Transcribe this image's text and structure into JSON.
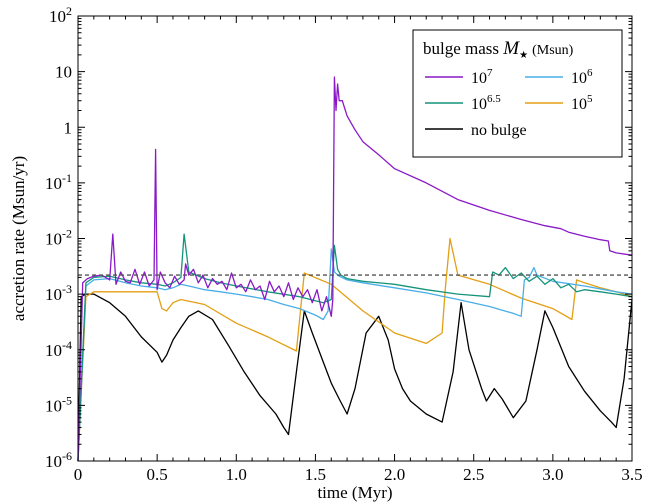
{
  "chart_data": {
    "type": "line",
    "xlabel": "time (Myr)",
    "ylabel": "accretion rate (Msun/yr)",
    "xlim": [
      0,
      3.5
    ],
    "ylim": [
      1e-06,
      100
    ],
    "yscale": "log",
    "x_ticks": [
      "0",
      "0.5",
      "1.0",
      "1.5",
      "2.0",
      "2.5",
      "3.0",
      "3.5"
    ],
    "y_ticks": [
      {
        "base": "10",
        "exp": "-6"
      },
      {
        "base": "10",
        "exp": "-5"
      },
      {
        "base": "10",
        "exp": "-4"
      },
      {
        "base": "10",
        "exp": "-3"
      },
      {
        "base": "10",
        "exp": "-2"
      },
      {
        "base": "10",
        "exp": "-1"
      },
      {
        "base": "1",
        "exp": ""
      },
      {
        "base": "10",
        "exp": ""
      },
      {
        "base": "10",
        "exp": "2"
      }
    ],
    "legend": {
      "title_prefix": "bulge mass ",
      "title_symbol": "M",
      "title_star": "★",
      "title_unit": "(Msun)",
      "placement": "top-right",
      "entries": [
        {
          "base": "10",
          "exp": "7",
          "color": "#8a19c7"
        },
        {
          "base": "10",
          "exp": "6",
          "color": "#49aee8"
        },
        {
          "base": "10",
          "exp": "6.5",
          "color": "#14947a"
        },
        {
          "base": "10",
          "exp": "5",
          "color": "#e49f14"
        },
        {
          "base": "no bulge",
          "exp": "",
          "color": "#000000"
        }
      ]
    },
    "reference_line": {
      "y": 0.0022,
      "style": "dashed",
      "color": "#555555"
    },
    "series": [
      {
        "color": "#000000",
        "x": [
          0,
          0.02,
          0.05,
          0.1,
          0.2,
          0.3,
          0.4,
          0.5,
          0.53,
          0.56,
          0.6,
          0.65,
          0.7,
          0.76,
          0.85,
          0.95,
          1.05,
          1.15,
          1.25,
          1.3,
          1.33,
          1.38,
          1.43,
          1.48,
          1.55,
          1.6,
          1.65,
          1.7,
          1.75,
          1.82,
          1.9,
          1.96,
          2.0,
          2.05,
          2.1,
          2.2,
          2.3,
          2.37,
          2.42,
          2.47,
          2.55,
          2.58,
          2.63,
          2.68,
          2.75,
          2.83,
          2.9,
          2.95,
          3.0,
          3.1,
          3.2,
          3.3,
          3.37,
          3.4,
          3.45,
          3.5
        ],
        "y": [
          1e-06,
          0.0009,
          0.001,
          0.001,
          0.0007,
          0.0004,
          0.00017,
          9e-05,
          6e-05,
          8e-05,
          0.00015,
          0.00025,
          0.0004,
          0.0005,
          0.00035,
          0.00012,
          4e-05,
          1.5e-05,
          7e-06,
          4e-06,
          3e-06,
          4e-05,
          0.0005,
          0.0002,
          6e-05,
          2.5e-05,
          1.3e-05,
          7e-06,
          2e-05,
          0.0002,
          0.0004,
          0.00015,
          4.5e-05,
          2e-05,
          1.2e-05,
          7e-06,
          5e-06,
          4e-05,
          0.0007,
          0.0001,
          2e-05,
          1.2e-05,
          2e-05,
          1.3e-05,
          6e-06,
          1.2e-05,
          0.0001,
          0.0005,
          0.00025,
          5e-05,
          1.8e-05,
          8e-06,
          5e-06,
          4e-06,
          3e-05,
          0.0008
        ]
      },
      {
        "color": "#e49f14",
        "x": [
          0,
          0.05,
          0.1,
          0.2,
          0.35,
          0.5,
          0.53,
          0.56,
          0.6,
          0.65,
          0.8,
          1.0,
          1.2,
          1.38,
          1.43,
          1.6,
          1.8,
          2.0,
          2.2,
          2.3,
          2.32,
          2.35,
          2.4,
          2.6,
          2.8,
          3.0,
          3.12,
          3.15,
          3.2,
          3.3,
          3.4,
          3.5
        ],
        "y": [
          1e-06,
          0.0009,
          0.0011,
          0.0011,
          0.0011,
          0.0011,
          0.00055,
          0.0005,
          0.0007,
          0.0008,
          0.00065,
          0.0003,
          0.00017,
          9.5e-05,
          0.0024,
          0.0015,
          0.0005,
          0.0002,
          0.00013,
          0.0002,
          0.0012,
          0.01,
          0.0022,
          0.0015,
          0.00085,
          0.00055,
          0.00035,
          0.0018,
          0.0016,
          0.0013,
          0.0011,
          0.0009
        ]
      },
      {
        "color": "#49aee8",
        "x": [
          0,
          0.05,
          0.1,
          0.2,
          0.3,
          0.4,
          0.5,
          0.55,
          0.6,
          0.65,
          0.7,
          0.8,
          0.9,
          1.0,
          1.1,
          1.2,
          1.3,
          1.4,
          1.5,
          1.55,
          1.58,
          1.6,
          1.62,
          1.65,
          1.7,
          1.8,
          2.0,
          2.2,
          2.4,
          2.6,
          2.75,
          2.8,
          2.82,
          2.85,
          2.88,
          2.9,
          3.0,
          3.2,
          3.4,
          3.5
        ],
        "y": [
          1e-06,
          0.0014,
          0.0018,
          0.0019,
          0.0016,
          0.0014,
          0.0013,
          0.0012,
          0.0013,
          0.0015,
          0.0014,
          0.0012,
          0.0011,
          0.001,
          0.0009,
          0.0008,
          0.00065,
          0.00055,
          0.00042,
          0.00035,
          0.0005,
          0.0065,
          0.0025,
          0.0021,
          0.0018,
          0.0016,
          0.0013,
          0.00105,
          0.0008,
          0.0006,
          0.00045,
          0.0004,
          0.0018,
          0.002,
          0.003,
          0.0022,
          0.0017,
          0.0014,
          0.0011,
          0.001
        ]
      },
      {
        "color": "#14947a",
        "x": [
          0,
          0.05,
          0.1,
          0.2,
          0.3,
          0.4,
          0.5,
          0.55,
          0.6,
          0.65,
          0.67,
          0.7,
          0.8,
          0.9,
          1.0,
          1.2,
          1.4,
          1.55,
          1.6,
          1.62,
          1.64,
          1.66,
          1.7,
          1.8,
          2.0,
          2.2,
          2.4,
          2.6,
          2.62,
          2.66,
          2.7,
          2.75,
          2.8,
          2.85,
          2.9,
          2.95,
          3.0,
          3.05,
          3.1,
          3.15,
          3.2,
          3.3,
          3.4,
          3.5
        ],
        "y": [
          1e-06,
          0.0016,
          0.002,
          0.0021,
          0.0018,
          0.0016,
          0.0015,
          0.0014,
          0.0016,
          0.002,
          0.012,
          0.0025,
          0.0019,
          0.0016,
          0.0014,
          0.0011,
          0.0009,
          0.0007,
          0.0008,
          0.0075,
          0.0028,
          0.0022,
          0.0019,
          0.0017,
          0.0015,
          0.0012,
          0.001,
          0.0009,
          0.0025,
          0.0022,
          0.003,
          0.0019,
          0.0024,
          0.0017,
          0.0021,
          0.0015,
          0.0019,
          0.0013,
          0.0015,
          0.0011,
          0.0012,
          0.0011,
          0.001,
          0.0009
        ]
      },
      {
        "color": "#8a19c7",
        "x": [
          0,
          0.03,
          0.06,
          0.1,
          0.15,
          0.2,
          0.22,
          0.24,
          0.27,
          0.3,
          0.33,
          0.36,
          0.39,
          0.42,
          0.45,
          0.48,
          0.49,
          0.5,
          0.52,
          0.55,
          0.58,
          0.61,
          0.64,
          0.67,
          0.68,
          0.7,
          0.73,
          0.76,
          0.79,
          0.82,
          0.85,
          0.88,
          0.91,
          0.94,
          0.97,
          1.0,
          1.03,
          1.06,
          1.09,
          1.12,
          1.15,
          1.18,
          1.21,
          1.24,
          1.27,
          1.3,
          1.33,
          1.36,
          1.39,
          1.42,
          1.45,
          1.48,
          1.51,
          1.54,
          1.57,
          1.6,
          1.61,
          1.62,
          1.63,
          1.64,
          1.65,
          1.67,
          1.7,
          1.75,
          1.8,
          1.9,
          2.0,
          2.2,
          2.4,
          2.6,
          2.8,
          2.95,
          3.05,
          3.1,
          3.2,
          3.3,
          3.35,
          3.36,
          3.4,
          3.5
        ],
        "y": [
          1e-06,
          0.0016,
          0.0019,
          0.0021,
          0.0022,
          0.0018,
          0.012,
          0.0015,
          0.0025,
          0.0017,
          0.0016,
          0.0028,
          0.0015,
          0.0025,
          0.0014,
          0.0018,
          0.4,
          0.0012,
          0.0025,
          0.0016,
          0.0013,
          0.0021,
          0.0015,
          0.0018,
          0.0035,
          0.0022,
          0.0028,
          0.0016,
          0.0022,
          0.0013,
          0.0019,
          0.0015,
          0.0017,
          0.0012,
          0.0024,
          0.0013,
          0.0015,
          0.0011,
          0.0018,
          0.0012,
          0.0014,
          0.0008,
          0.0017,
          0.0011,
          0.0014,
          0.0009,
          0.0016,
          0.0008,
          0.0013,
          0.0009,
          0.0012,
          0.0007,
          0.0012,
          0.0005,
          0.0009,
          0.0004,
          0.0008,
          8,
          2,
          6,
          3,
          3,
          1.6,
          0.9,
          0.55,
          0.32,
          0.18,
          0.1,
          0.05,
          0.032,
          0.022,
          0.017,
          0.015,
          0.013,
          0.011,
          0.0095,
          0.009,
          0.006,
          0.0055,
          0.005
        ]
      }
    ]
  }
}
